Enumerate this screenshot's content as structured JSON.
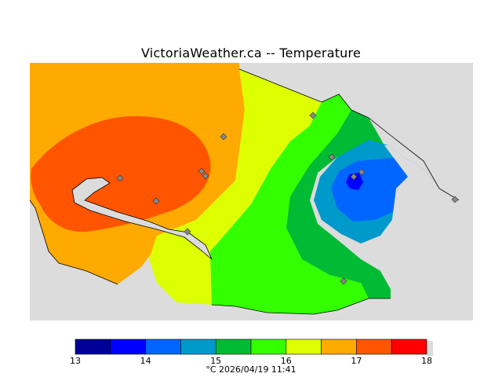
{
  "title": "VictoriaWeather.ca -- Temperature",
  "footer": "°C  2026/04/19 11:41",
  "colorbar": {
    "ticks": [
      "13",
      "14",
      "15",
      "16",
      "17",
      "18"
    ],
    "colors": [
      "#000099",
      "#0000ff",
      "#0066ff",
      "#0099cc",
      "#00bb33",
      "#33ff00",
      "#ddff00",
      "#ffaa00",
      "#ff5500",
      "#ff0000"
    ]
  },
  "colors": {
    "land_background": "#dcdcdc",
    "boundary": "#000000",
    "station_marker": "#888888"
  },
  "stations": {
    "count": 12
  }
}
